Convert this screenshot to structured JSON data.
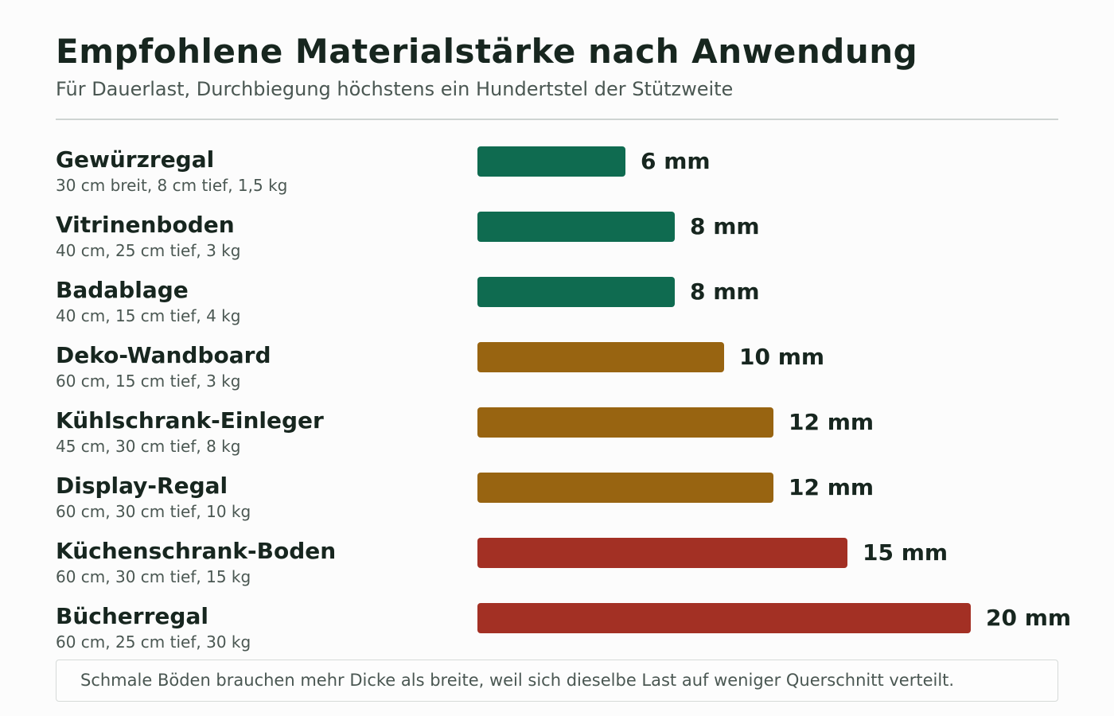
{
  "chart_data": {
    "type": "bar",
    "orientation": "horizontal",
    "title": "Empfohlene Materialstärke nach Anwendung",
    "subtitle": "Für Dauerlast, Durchbiegung höchstens ein Hundertstel der Stützweite",
    "unit": "mm",
    "categories": [
      "Gewürzregal",
      "Vitrinenboden",
      "Badablage",
      "Deko-Wandboard",
      "Kühlschrank-Einleger",
      "Display-Regal",
      "Küchenschrank-Boden",
      "Bücherregal"
    ],
    "details": [
      "30 cm breit, 8 cm tief, 1,5 kg",
      "40 cm, 25 cm tief, 3 kg",
      "40 cm, 15 cm tief, 4 kg",
      "60 cm, 15 cm tief, 3 kg",
      "45 cm, 30 cm tief, 8 kg",
      "60 cm, 30 cm tief, 10 kg",
      "60 cm, 30 cm tief, 15 kg",
      "60 cm, 25 cm tief, 30 kg"
    ],
    "values": [
      6,
      8,
      8,
      10,
      12,
      12,
      15,
      20
    ],
    "value_labels": [
      "6 mm",
      "8 mm",
      "8 mm",
      "10 mm",
      "12 mm",
      "12 mm",
      "15 mm",
      "20 mm"
    ],
    "colors": [
      "#0f6b50",
      "#0f6b50",
      "#0f6b50",
      "#986411",
      "#986411",
      "#986411",
      "#a33024",
      "#a33024"
    ],
    "xlim": [
      0,
      20
    ],
    "grid": false
  },
  "footnote": "Schmale Böden brauchen mehr Dicke als breite, weil sich dieselbe Last auf weniger Querschnitt verteilt."
}
